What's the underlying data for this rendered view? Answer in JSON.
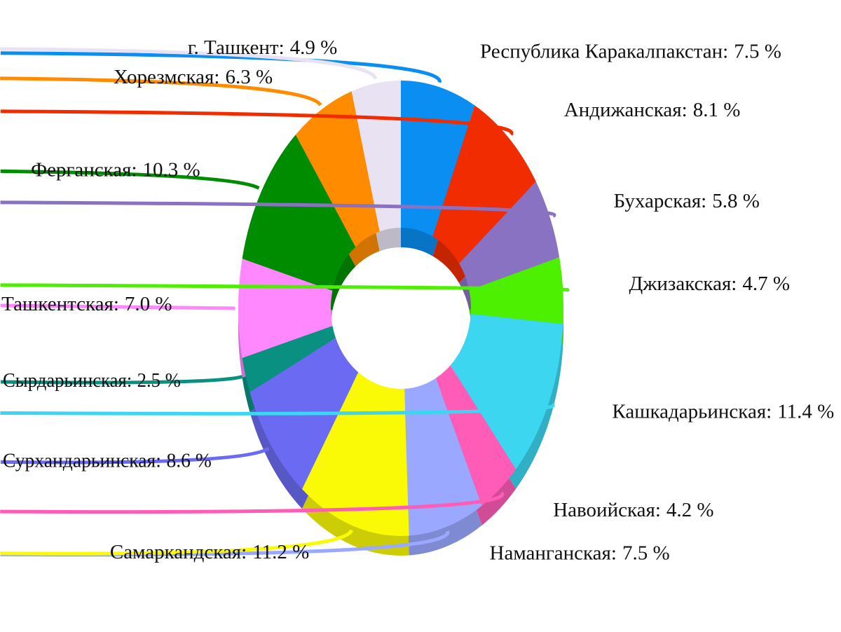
{
  "chart_data": {
    "type": "donut3d",
    "categories": [
      "Республика Каракалпакстан:",
      "Андижанская:",
      "Бухарская:",
      "Джизакская:",
      "Кашкадарьинская:",
      "Навоийская:",
      "Наманганская:",
      "Самаркандская:",
      "Сурхандарьинская:",
      "Сырдарьинская:",
      "Ташкентская:",
      "Ферганская:",
      "Хорезмская:",
      "г. Ташкент:"
    ],
    "values": [
      7.5,
      8.1,
      5.8,
      4.7,
      11.4,
      4.2,
      7.5,
      11.2,
      8.6,
      2.5,
      7.0,
      10.3,
      6.3,
      4.9
    ],
    "value_labels": [
      "7.5 %",
      "8.1 %",
      "5.8 %",
      "4.7 %",
      "11.4 %",
      "4.2 %",
      "7.5 %",
      "11.2 %",
      "8.6 %",
      "2.5 %",
      "7.0 %",
      "10.3 %",
      "6.3 %",
      "4.9 %"
    ],
    "colors": [
      "#0a8ef2",
      "#f02c00",
      "#8a72c2",
      "#4cf000",
      "#3cd6f0",
      "#ff5cb8",
      "#9aa8ff",
      "#fafa06",
      "#6a6af2",
      "#0a9080",
      "#ff88ff",
      "#008c00",
      "#ff8c00",
      "#e8e2f2"
    ]
  }
}
